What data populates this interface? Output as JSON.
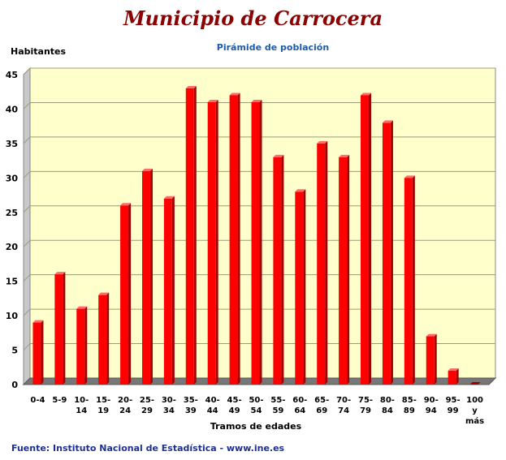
{
  "header": {
    "title": "Municipio de Carrocera",
    "subtitle": "Pirámide de población"
  },
  "footer": {
    "source": "Fuente: Instituto Nacional de Estadística - www.ine.es"
  },
  "colors": {
    "bar": "#ff0000",
    "bar_dark": "#a00000",
    "plot_background": "#ffffcc",
    "title": "#8b0000",
    "subtitle": "#1f5aa6",
    "footer": "#1f2f8f"
  },
  "chart_data": {
    "type": "bar",
    "title": "Municipio de Carrocera",
    "subtitle": "Pirámide de población",
    "xlabel": "Tramos de edades",
    "ylabel": "Habitantes",
    "ylim": [
      0,
      45
    ],
    "yticks": [
      0,
      5,
      10,
      15,
      20,
      25,
      30,
      35,
      40,
      45
    ],
    "grid": true,
    "legend": "none",
    "categories": [
      [
        "0-4"
      ],
      [
        "5-9"
      ],
      [
        "10-",
        "14"
      ],
      [
        "15-",
        "19"
      ],
      [
        "20-",
        "24"
      ],
      [
        "25-",
        "29"
      ],
      [
        "30-",
        "34"
      ],
      [
        "35-",
        "39"
      ],
      [
        "40-",
        "44"
      ],
      [
        "45-",
        "49"
      ],
      [
        "50-",
        "54"
      ],
      [
        "55-",
        "59"
      ],
      [
        "60-",
        "64"
      ],
      [
        "65-",
        "69"
      ],
      [
        "70-",
        "74"
      ],
      [
        "75-",
        "79"
      ],
      [
        "80-",
        "84"
      ],
      [
        "85-",
        "89"
      ],
      [
        "90-",
        "94"
      ],
      [
        "95-",
        "99"
      ],
      [
        "100",
        "y",
        "más"
      ]
    ],
    "values": [
      9,
      16,
      11,
      13,
      26,
      31,
      27,
      43,
      41,
      42,
      41,
      33,
      28,
      35,
      33,
      42,
      38,
      30,
      7,
      2,
      0
    ]
  }
}
